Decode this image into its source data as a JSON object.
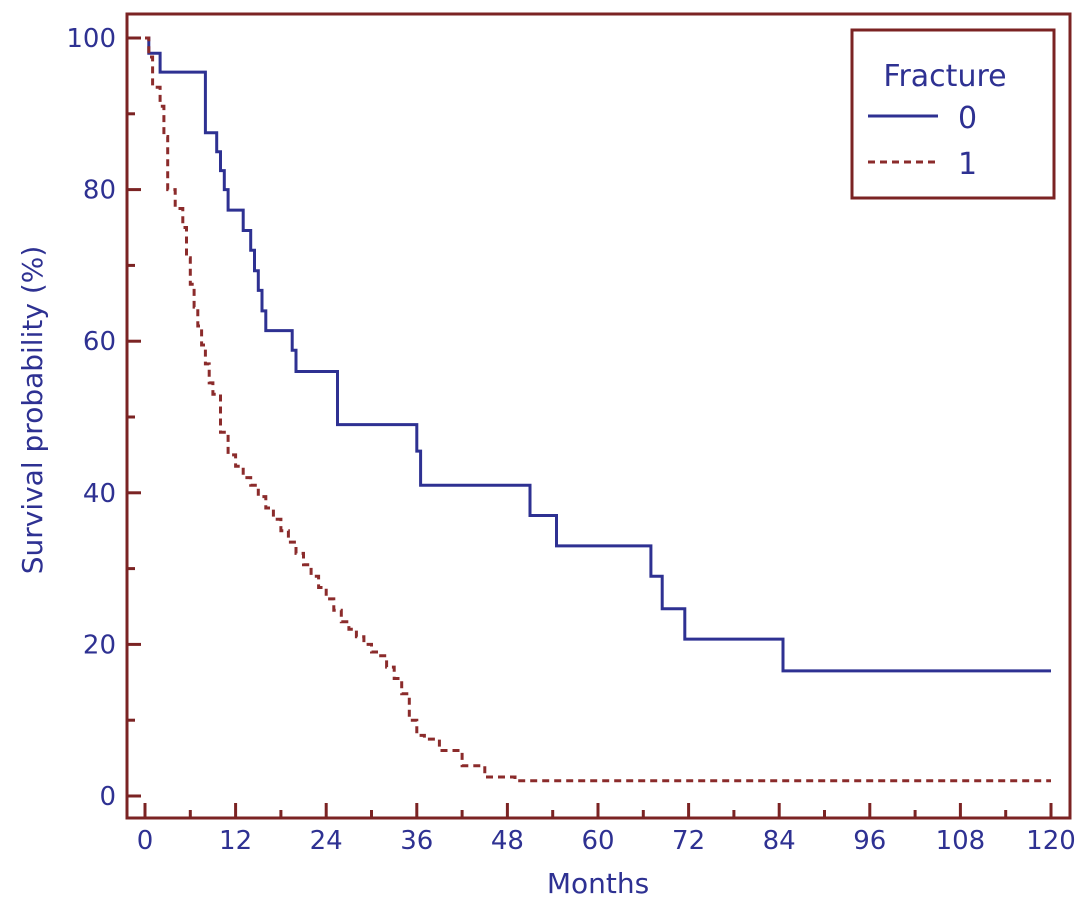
{
  "chart_data": {
    "type": "line",
    "step": true,
    "xlabel": "Months",
    "ylabel": "Survival probability (%)",
    "xlim": [
      0,
      120
    ],
    "ylim": [
      0,
      100
    ],
    "x_ticks": [
      0,
      12,
      24,
      36,
      48,
      60,
      72,
      84,
      96,
      108,
      120
    ],
    "y_ticks": [
      0,
      20,
      40,
      60,
      80,
      100
    ],
    "grid": false,
    "legend": {
      "title": "Fracture",
      "placement": "top-right"
    },
    "colors": {
      "axis": "#7b2323",
      "text": "#2e3192",
      "series_0": "#2e3192",
      "series_1": "#8b2b2b"
    },
    "series": [
      {
        "name": "0",
        "style": "solid",
        "x": [
          0,
          0.5,
          2,
          8,
          9.5,
          10,
          10.5,
          11,
          13,
          14,
          14.5,
          15,
          15.5,
          16,
          19.5,
          20,
          25.5,
          36,
          36.5,
          51,
          54.5,
          67,
          68.5,
          71.5,
          84.5,
          120
        ],
        "y": [
          100,
          98,
          95.5,
          87.5,
          85,
          82.5,
          80,
          77.3,
          74.6,
          72,
          69.3,
          66.7,
          64,
          61.4,
          58.8,
          56,
          49,
          45.5,
          41,
          37,
          33,
          29,
          24.7,
          20.7,
          16.5,
          16.5
        ]
      },
      {
        "name": "1",
        "style": "dashed",
        "x": [
          0,
          0.5,
          1,
          2,
          2.5,
          3,
          4,
          5,
          5.5,
          6,
          6.5,
          7,
          7.5,
          8,
          8.5,
          9,
          10,
          11,
          12,
          13,
          14,
          15,
          16,
          17,
          18,
          19,
          20,
          21,
          22,
          23,
          24,
          25,
          26,
          27,
          28,
          29,
          30,
          31,
          32,
          33,
          34,
          35,
          36,
          37,
          39,
          42,
          45,
          49,
          120
        ],
        "y": [
          100,
          97.5,
          93.5,
          91,
          87,
          80,
          77.5,
          75,
          71,
          67.5,
          64.5,
          62,
          59.5,
          57,
          54.5,
          53,
          48,
          45,
          43.5,
          42,
          41,
          39.5,
          38,
          36.5,
          35,
          33.5,
          32,
          30.5,
          29,
          27.5,
          26,
          24.5,
          23,
          22,
          21,
          20,
          19,
          18.5,
          17,
          15.5,
          13.5,
          10,
          8,
          7.5,
          6,
          4,
          2.5,
          2,
          2
        ]
      }
    ]
  }
}
